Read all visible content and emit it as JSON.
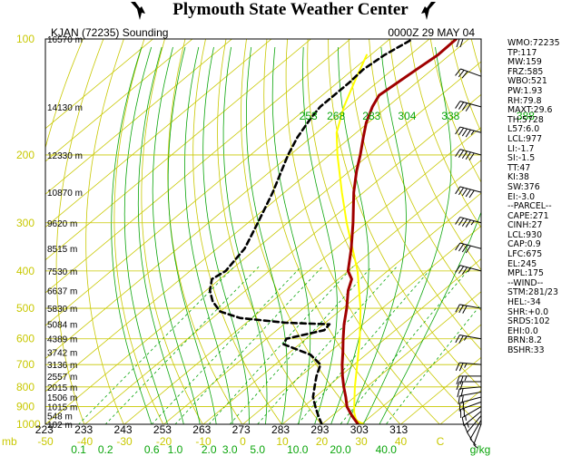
{
  "header": {
    "title": "Plymouth State Weather Center",
    "logo_icon": "mountain-silhouette-icon"
  },
  "colors": {
    "background": "#ffffff",
    "frame": "#000000",
    "isobar": "#c8c800",
    "isotherm": "#c8c800",
    "dry_adiabat": "#c8c800",
    "moist_adiabat": "#0aa50a",
    "mixing_ratio": "#0aa50a",
    "temperature": "#a00000",
    "dewpoint": "#000000",
    "parcel": "#ffff00",
    "pressure_labels": "#c8c800",
    "height_labels": "#000000",
    "theta_labels": "#0aa50a",
    "wind_barbs": "#000000"
  },
  "chart_data": {
    "type": "skew-t log-p sounding",
    "title": "KJAN (72235) Sounding",
    "valid_time": "0000Z 29 MAY 04",
    "y_axis": {
      "quantity": "pressure",
      "label": "mb",
      "scale": "log",
      "range": [
        1000,
        100
      ]
    },
    "x_axis": {
      "quantity": "temperature",
      "unit": "C",
      "range": [
        -50,
        50
      ],
      "ticks": [
        "-50",
        "-40",
        "-30",
        "-20",
        "-10",
        "0",
        "10",
        "20",
        "30",
        "40",
        "C"
      ]
    },
    "pressure_ticks": [
      "100",
      "200",
      "300",
      "400",
      "500",
      "600",
      "700",
      "800",
      "900",
      "1000"
    ],
    "height_labels": [
      {
        "p": 100,
        "label": "16570 m"
      },
      {
        "p": 150,
        "label": "14130 m"
      },
      {
        "p": 200,
        "label": "12330 m"
      },
      {
        "p": 250,
        "label": "10870 m"
      },
      {
        "p": 300,
        "label": "9620 m"
      },
      {
        "p": 350,
        "label": "8515 m"
      },
      {
        "p": 400,
        "label": "7530 m"
      },
      {
        "p": 450,
        "label": "6637 m"
      },
      {
        "p": 500,
        "label": "5830 m"
      },
      {
        "p": 550,
        "label": "5084 m"
      },
      {
        "p": 600,
        "label": "4389 m"
      },
      {
        "p": 650,
        "label": "3742 m"
      },
      {
        "p": 700,
        "label": "3136 m"
      },
      {
        "p": 750,
        "label": "2557 m"
      },
      {
        "p": 800,
        "label": "2015 m"
      },
      {
        "p": 850,
        "label": "1506 m"
      },
      {
        "p": 900,
        "label": "1015 m"
      },
      {
        "p": 950,
        "label": "548 m"
      },
      {
        "p": 1000,
        "label": "102 m"
      }
    ],
    "theta_labels_bottom": [
      {
        "theta": 223,
        "label": "223"
      },
      {
        "theta": 233,
        "label": "233"
      },
      {
        "theta": 243,
        "label": "243"
      },
      {
        "theta": 253,
        "label": "253"
      },
      {
        "theta": 263,
        "label": "263"
      },
      {
        "theta": 273,
        "label": "273"
      },
      {
        "theta": 283,
        "label": "283"
      },
      {
        "theta": 293,
        "label": "293"
      },
      {
        "theta": 303,
        "label": "303"
      },
      {
        "theta": 313,
        "label": "313"
      }
    ],
    "theta_e_labels_150mb": [
      {
        "label": "253",
        "t_c": -80
      },
      {
        "label": "268",
        "t_c": -73
      },
      {
        "label": "283",
        "t_c": -64
      },
      {
        "label": "304",
        "t_c": -55
      },
      {
        "label": "338",
        "t_c": -44
      },
      {
        "label": "388",
        "t_c": -25
      }
    ],
    "mixing_ratio_labels": [
      {
        "w": 0.1,
        "label": "0.1"
      },
      {
        "w": 0.2,
        "label": "0.2"
      },
      {
        "w": 0.6,
        "label": "0.6"
      },
      {
        "w": 1.0,
        "label": "1.0"
      },
      {
        "w": 2.0,
        "label": "2.0"
      },
      {
        "w": 3.0,
        "label": "3.0"
      },
      {
        "w": 5.0,
        "label": "5.0"
      },
      {
        "w": 10.0,
        "label": "10.0"
      },
      {
        "w": 20.0,
        "label": "20.0"
      },
      {
        "w": 40.0,
        "label": "40.0"
      }
    ],
    "mixing_ratio_unit": "g/kg",
    "temperature_profile": [
      {
        "p": 1000,
        "t": 29.2
      },
      {
        "p": 950,
        "t": 25.0
      },
      {
        "p": 900,
        "t": 21.0
      },
      {
        "p": 850,
        "t": 17.8
      },
      {
        "p": 800,
        "t": 14.2
      },
      {
        "p": 750,
        "t": 10.6
      },
      {
        "p": 700,
        "t": 7.0
      },
      {
        "p": 650,
        "t": 3.4
      },
      {
        "p": 600,
        "t": -0.6
      },
      {
        "p": 550,
        "t": -4.8
      },
      {
        "p": 500,
        "t": -9.0
      },
      {
        "p": 450,
        "t": -14.0
      },
      {
        "p": 420,
        "t": -16.6
      },
      {
        "p": 400,
        "t": -20.0
      },
      {
        "p": 350,
        "t": -26.0
      },
      {
        "p": 300,
        "t": -33.4
      },
      {
        "p": 250,
        "t": -42.5
      },
      {
        "p": 220,
        "t": -48.3
      },
      {
        "p": 200,
        "t": -52.2
      },
      {
        "p": 180,
        "t": -56.8
      },
      {
        "p": 165,
        "t": -60.5
      },
      {
        "p": 150,
        "t": -63.8
      },
      {
        "p": 140,
        "t": -65.6
      },
      {
        "p": 130,
        "t": -64.8
      },
      {
        "p": 120,
        "t": -64.0
      },
      {
        "p": 110,
        "t": -63.0
      },
      {
        "p": 100,
        "t": -63.2
      }
    ],
    "dewpoint_profile": [
      {
        "p": 1000,
        "t": 20.0
      },
      {
        "p": 950,
        "t": 16.5
      },
      {
        "p": 900,
        "t": 13.0
      },
      {
        "p": 850,
        "t": 9.5
      },
      {
        "p": 800,
        "t": 6.8
      },
      {
        "p": 750,
        "t": 4.0
      },
      {
        "p": 700,
        "t": 1.5
      },
      {
        "p": 660,
        "t": -4.0
      },
      {
        "p": 620,
        "t": -14.0
      },
      {
        "p": 600,
        "t": -15.0
      },
      {
        "p": 570,
        "t": -8.0
      },
      {
        "p": 550,
        "t": -8.5
      },
      {
        "p": 545,
        "t": -20.0
      },
      {
        "p": 530,
        "t": -33.0
      },
      {
        "p": 510,
        "t": -40.0
      },
      {
        "p": 480,
        "t": -45.0
      },
      {
        "p": 450,
        "t": -49.0
      },
      {
        "p": 420,
        "t": -52.0
      },
      {
        "p": 400,
        "t": -51.0
      },
      {
        "p": 350,
        "t": -53.0
      },
      {
        "p": 300,
        "t": -57.5
      },
      {
        "p": 250,
        "t": -63.0
      },
      {
        "p": 200,
        "t": -70.5
      },
      {
        "p": 180,
        "t": -73.5
      },
      {
        "p": 160,
        "t": -76.0
      },
      {
        "p": 150,
        "t": -77.0
      },
      {
        "p": 130,
        "t": -77.0
      },
      {
        "p": 120,
        "t": -77.5
      },
      {
        "p": 110,
        "t": -76.5
      },
      {
        "p": 100,
        "t": -74.2
      }
    ],
    "parcel_profile": [
      {
        "p": 1000,
        "t": 30.6
      },
      {
        "p": 977,
        "t": 27.5
      },
      {
        "p": 930,
        "t": 24.5
      },
      {
        "p": 850,
        "t": 20.0
      },
      {
        "p": 800,
        "t": 17.0
      },
      {
        "p": 700,
        "t": 10.8
      },
      {
        "p": 600,
        "t": 3.6
      },
      {
        "p": 500,
        "t": -5.5
      },
      {
        "p": 400,
        "t": -17.6
      },
      {
        "p": 300,
        "t": -35.0
      },
      {
        "p": 250,
        "t": -45.5
      },
      {
        "p": 200,
        "t": -58.0
      },
      {
        "p": 175,
        "t": -65.0
      },
      {
        "p": 150,
        "t": -71.0
      },
      {
        "p": 125,
        "t": -77.0
      },
      {
        "p": 110,
        "t": -81.0
      }
    ],
    "wind_barbs": [
      {
        "p": 1000,
        "dir": 200,
        "spd": 5
      },
      {
        "p": 975,
        "dir": 210,
        "spd": 10
      },
      {
        "p": 950,
        "dir": 220,
        "spd": 10
      },
      {
        "p": 925,
        "dir": 230,
        "spd": 15
      },
      {
        "p": 900,
        "dir": 240,
        "spd": 15
      },
      {
        "p": 875,
        "dir": 250,
        "spd": 20
      },
      {
        "p": 850,
        "dir": 255,
        "spd": 20
      },
      {
        "p": 825,
        "dir": 260,
        "spd": 20
      },
      {
        "p": 800,
        "dir": 265,
        "spd": 20
      },
      {
        "p": 775,
        "dir": 270,
        "spd": 20
      },
      {
        "p": 750,
        "dir": 270,
        "spd": 25
      },
      {
        "p": 700,
        "dir": 275,
        "spd": 25
      },
      {
        "p": 600,
        "dir": 280,
        "spd": 25
      },
      {
        "p": 500,
        "dir": 280,
        "spd": 30
      },
      {
        "p": 400,
        "dir": 285,
        "spd": 35
      },
      {
        "p": 350,
        "dir": 285,
        "spd": 40
      },
      {
        "p": 300,
        "dir": 285,
        "spd": 45
      },
      {
        "p": 250,
        "dir": 285,
        "spd": 50
      },
      {
        "p": 200,
        "dir": 285,
        "spd": 50
      },
      {
        "p": 175,
        "dir": 285,
        "spd": 45
      },
      {
        "p": 150,
        "dir": 285,
        "spd": 40
      },
      {
        "p": 125,
        "dir": 290,
        "spd": 30
      },
      {
        "p": 100,
        "dir": 270,
        "spd": 20
      }
    ]
  },
  "indices": [
    "WMO:72235",
    "TP:117",
    "MW:159",
    "FRZ:585",
    "WBO:521",
    "PW:1.93",
    "RH:79.8",
    "MAXT:29.6",
    "TH:5728",
    "L57:6.0",
    "LCL:977",
    "LI:-1.7",
    "SI:-1.5",
    "TT:47",
    "KI:38",
    "SW:376",
    "EI:-3.0",
    "--PARCEL--",
    "CAPE:271",
    "CINH:27",
    "LCL:930",
    "CAP:0.9",
    "LFC:675",
    "EL:245",
    "MPL:175",
    "--WIND--",
    "STM:281/23",
    "HEL:-34",
    "SHR:+0.0",
    "SRDS:102",
    "EHI:0.0",
    "BRN:8.2",
    "BSHR:33"
  ]
}
